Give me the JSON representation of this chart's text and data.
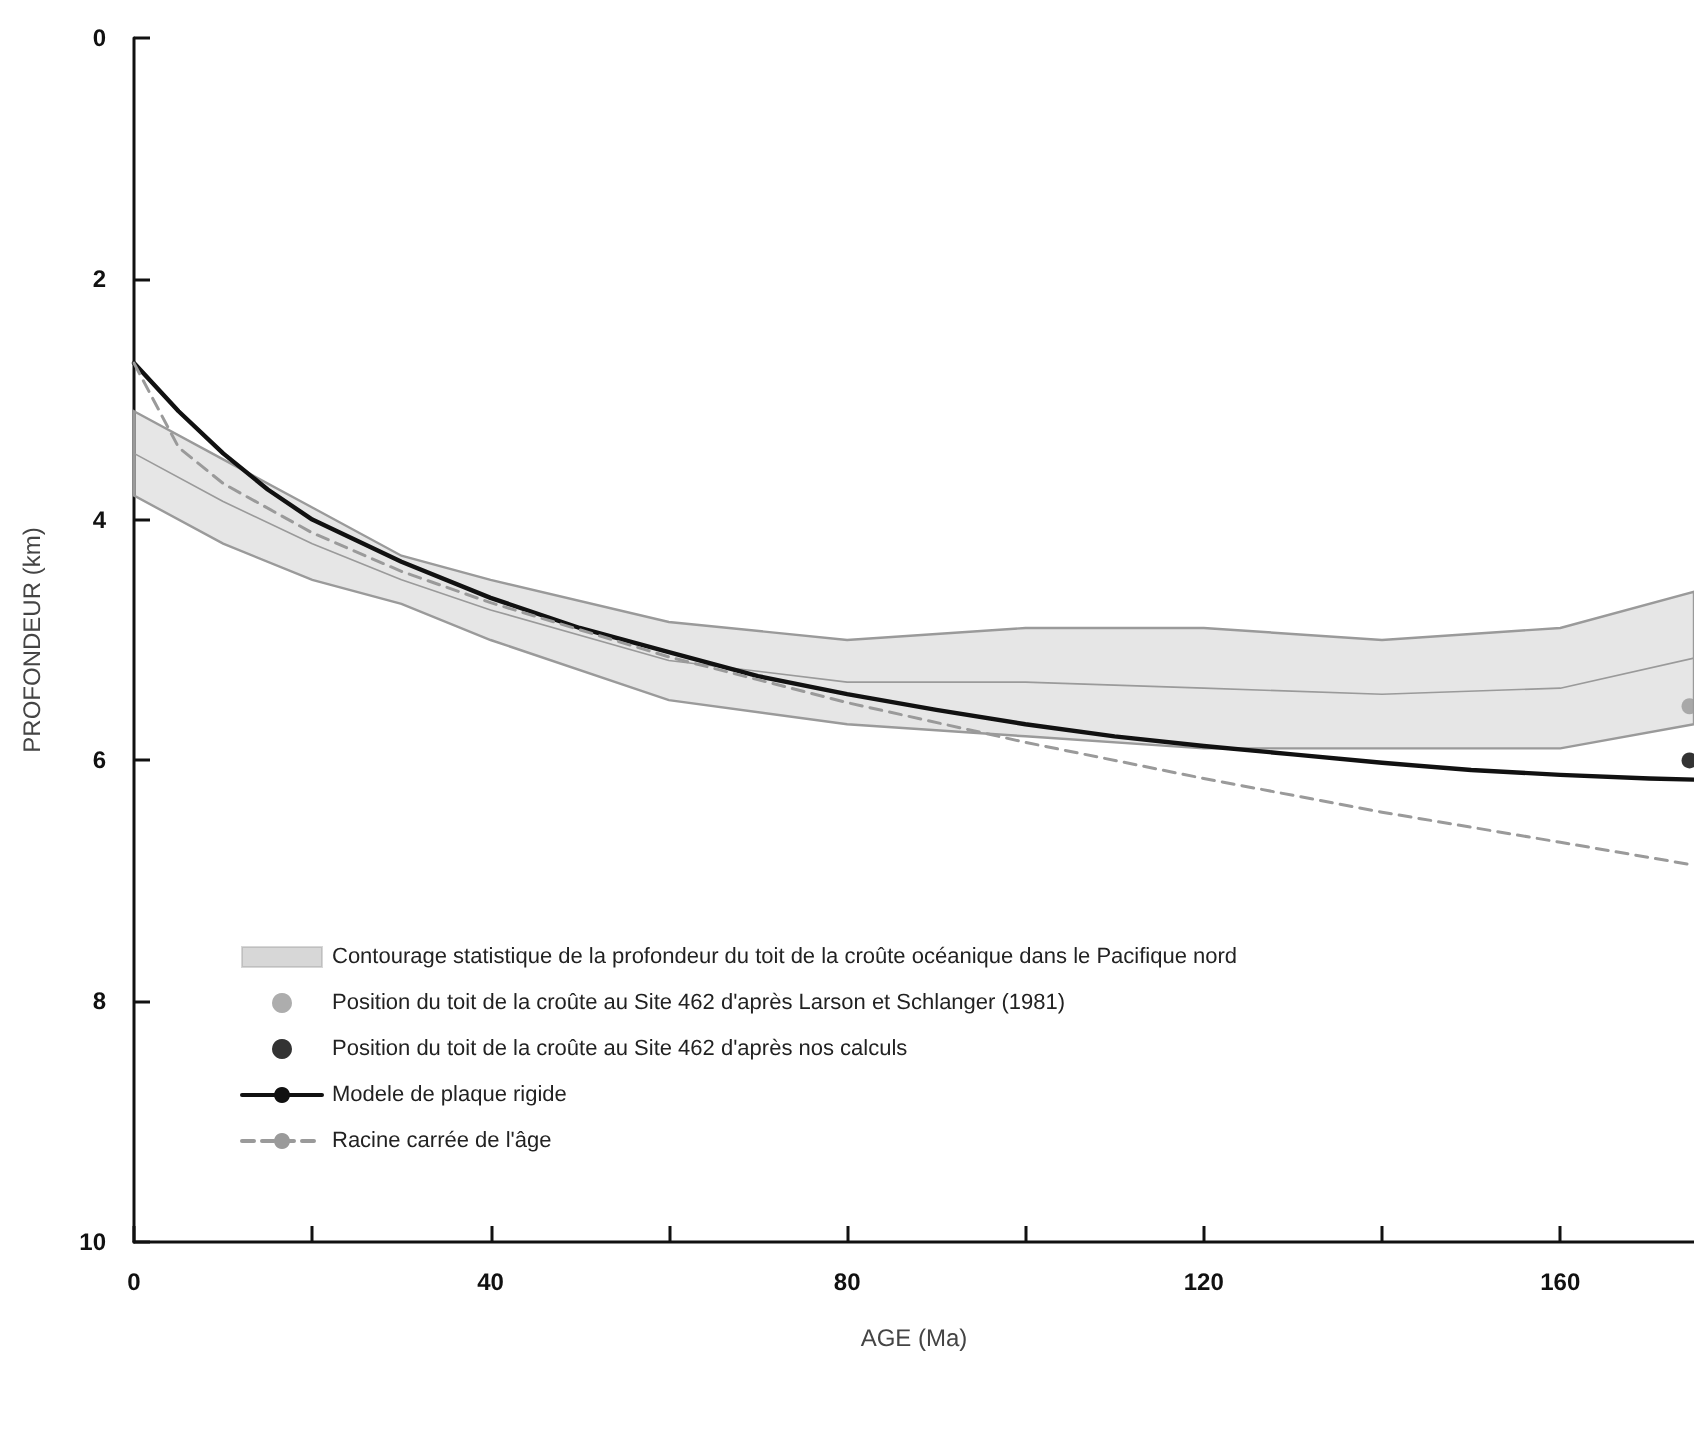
{
  "chart_data": {
    "type": "line",
    "xlabel": "AGE (Ma)",
    "ylabel": "PROFONDEUR (km)",
    "xlim": [
      0,
      175
    ],
    "ylim": [
      10,
      0
    ],
    "xticks": [
      0,
      {
        "value": 20,
        "label": null
      },
      40,
      {
        "value": 60,
        "label": null
      },
      80,
      {
        "value": 100,
        "label": null
      },
      120,
      {
        "value": 140,
        "label": null
      },
      160
    ],
    "yticks": [
      0,
      2,
      4,
      6,
      8,
      10
    ],
    "grid": false,
    "legend": "bottom left",
    "series": [
      {
        "name": "Contourage statistique de la profondeur du toit de la croûte océanique dans le Pacifique nord",
        "color": "#9a9a9a",
        "marker": "none",
        "line_style": "solid",
        "x": [
          0,
          10,
          20,
          30,
          40,
          60,
          80,
          100,
          120,
          140,
          160,
          175
        ],
        "values": [
          3.45,
          3.85,
          4.2,
          4.5,
          4.75,
          5.17,
          5.35,
          5.35,
          5.4,
          5.45,
          5.4,
          5.15
        ],
        "lower": [
          3.8,
          4.2,
          4.5,
          4.7,
          5.0,
          5.5,
          5.7,
          5.8,
          5.9,
          5.9,
          5.9,
          5.7
        ],
        "upper": [
          3.1,
          3.5,
          3.9,
          4.3,
          4.5,
          4.85,
          5.0,
          4.9,
          4.9,
          5.0,
          4.9,
          4.6
        ]
      },
      {
        "name": "Position du toit de la croûte au Site 462 d'après Larson et Schlanger (1981)",
        "type": "scatter",
        "color": "#999999",
        "marker": "circle",
        "x": [
          174.5
        ],
        "values": [
          5.55
        ]
      },
      {
        "name": "Position du toit de la croûte au Site 462 d'après nos calculs",
        "type": "scatter",
        "color": "#000000",
        "marker": "circle",
        "x": [
          174.5
        ],
        "values": [
          6.0
        ]
      },
      {
        "name": "Modele de plaque rigide",
        "color": "#111111",
        "marker": "none",
        "line_style": "solid",
        "x": [
          0,
          5,
          10,
          15,
          20,
          30,
          40,
          50,
          60,
          70,
          80,
          90,
          100,
          110,
          120,
          130,
          140,
          150,
          160,
          170,
          175
        ],
        "values": [
          2.7,
          3.1,
          3.45,
          3.75,
          4.0,
          4.35,
          4.65,
          4.9,
          5.1,
          5.3,
          5.45,
          5.58,
          5.7,
          5.8,
          5.88,
          5.95,
          6.02,
          6.08,
          6.12,
          6.15,
          6.16
        ]
      },
      {
        "name": "Racine carrée de l'âge",
        "color": "#9a9a9a",
        "marker": "none",
        "line_style": "dashed",
        "x": [
          0,
          5,
          10,
          20,
          30,
          40,
          60,
          80,
          100,
          120,
          140,
          160,
          175
        ],
        "values": [
          2.7,
          3.4,
          3.7,
          4.11,
          4.43,
          4.69,
          5.14,
          5.52,
          5.85,
          6.15,
          6.43,
          6.68,
          6.87
        ]
      }
    ]
  }
}
